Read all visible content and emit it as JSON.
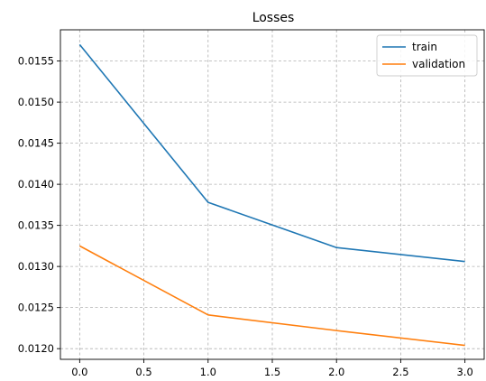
{
  "chart_data": {
    "type": "line",
    "title": "Losses",
    "xlabel": "",
    "ylabel": "",
    "x": [
      0,
      1,
      2,
      3
    ],
    "xlim": [
      -0.15,
      3.15
    ],
    "ylim": [
      0.01187,
      0.01588
    ],
    "xticks": [
      0.0,
      0.5,
      1.0,
      1.5,
      2.0,
      2.5,
      3.0
    ],
    "xtick_labels": [
      "0.0",
      "0.5",
      "1.0",
      "1.5",
      "2.0",
      "2.5",
      "3.0"
    ],
    "yticks": [
      0.012,
      0.0125,
      0.013,
      0.0135,
      0.014,
      0.0145,
      0.015,
      0.0155
    ],
    "ytick_labels": [
      "0.0120",
      "0.0125",
      "0.0130",
      "0.0135",
      "0.0140",
      "0.0145",
      "0.0150",
      "0.0155"
    ],
    "grid": true,
    "legend_position": "top-right",
    "series": [
      {
        "name": "train",
        "values": [
          0.0157,
          0.01378,
          0.01323,
          0.01306
        ],
        "color": "#1f77b4"
      },
      {
        "name": "validation",
        "values": [
          0.01325,
          0.01241,
          0.01222,
          0.01204
        ],
        "color": "#ff7f0e"
      }
    ]
  }
}
